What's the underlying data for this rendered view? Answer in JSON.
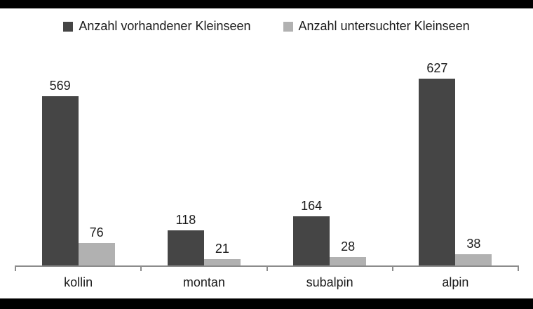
{
  "frame": {
    "top_bar_color": "#000000",
    "bottom_bar_color": "#000000",
    "background_color": "#ffffff"
  },
  "chart_data": {
    "type": "bar",
    "title": "",
    "xlabel": "",
    "ylabel": "",
    "categories": [
      "kollin",
      "montan",
      "subalpin",
      "alpin"
    ],
    "series": [
      {
        "name": "Anzahl vorhandener Kleinseen",
        "color": "#454545",
        "values": [
          569,
          118,
          164,
          627
        ]
      },
      {
        "name": "Anzahl untersuchter Kleinseen",
        "color": "#b1b1b1",
        "values": [
          76,
          21,
          28,
          38
        ]
      }
    ],
    "value_labels": [
      [
        "569",
        "118",
        "164",
        "627"
      ],
      [
        "76",
        "21",
        "28",
        "38"
      ]
    ],
    "ylim": [
      0,
      660
    ],
    "grid": false,
    "legend_position": "top",
    "axis_color": "#8c8c8c",
    "label_color": "#1a1a1a",
    "y_axis_visible": false,
    "x_axis_visible": true
  }
}
